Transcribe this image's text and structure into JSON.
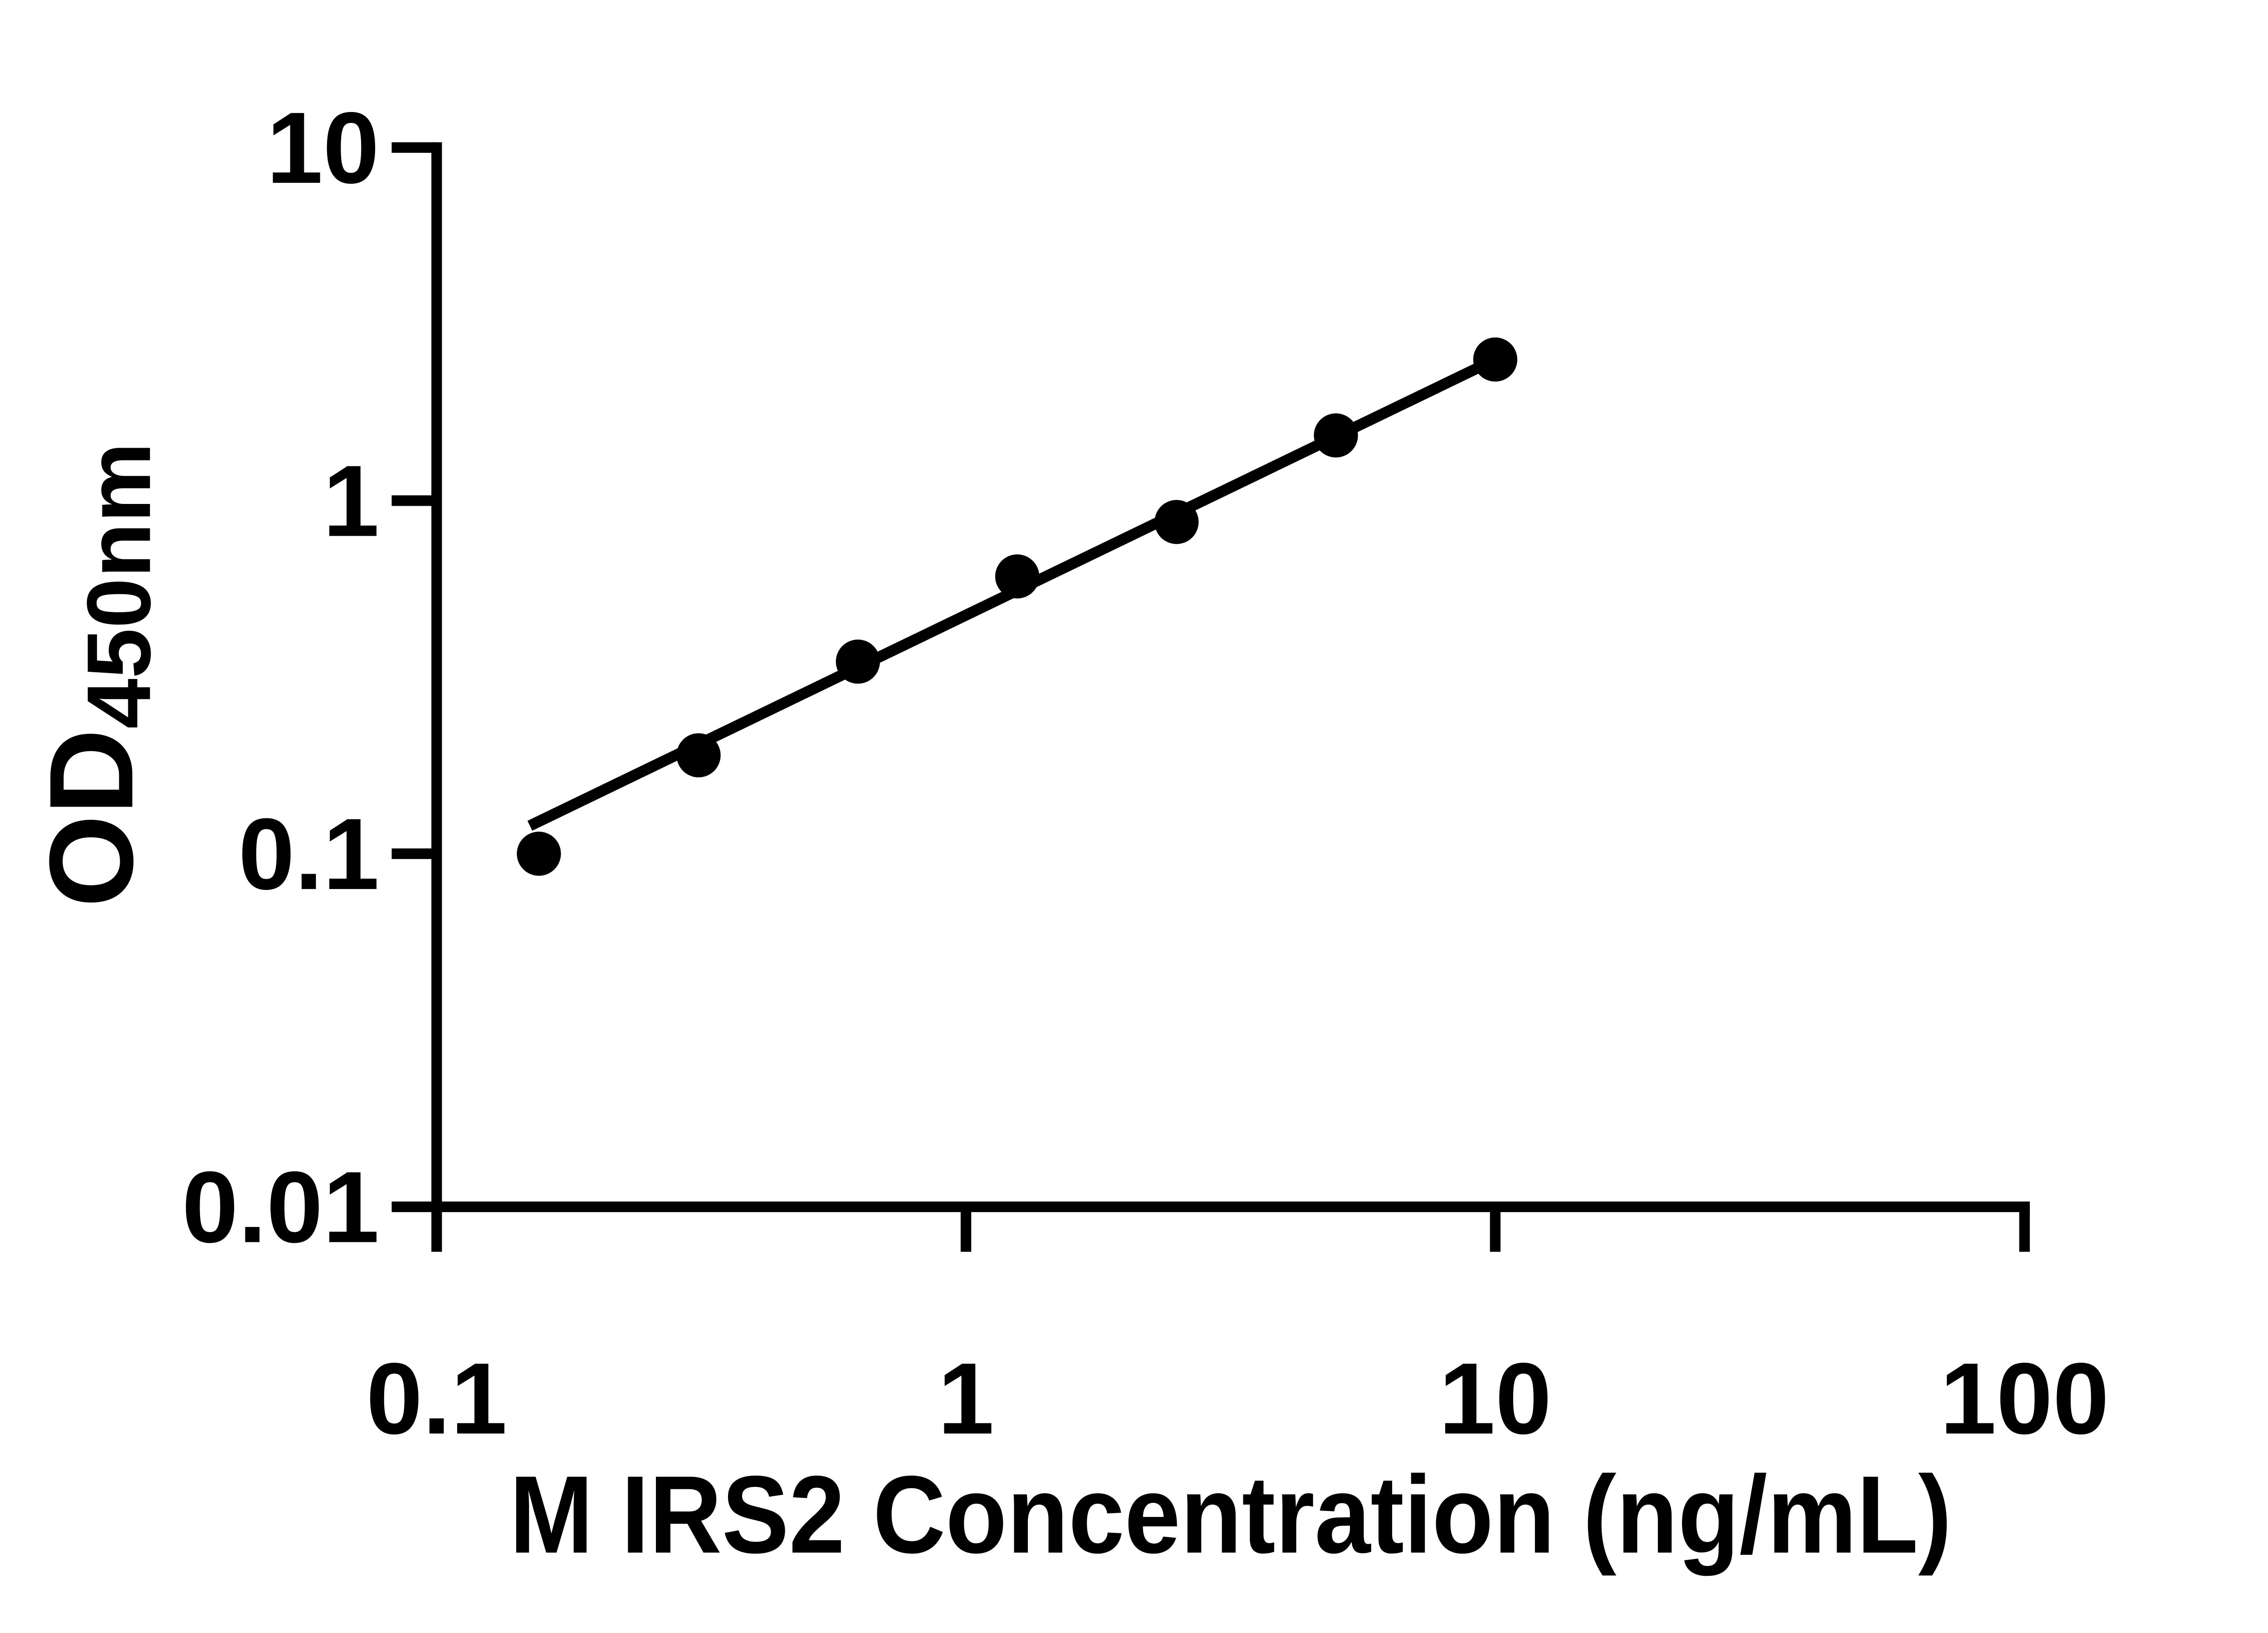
{
  "figure": {
    "background_color": "#ffffff",
    "foreground_color": "#000000"
  },
  "chart_data": {
    "type": "scatter",
    "title": "",
    "xlabel": "M IRS2 Concentration (ng/mL)",
    "ylabel_main": "OD",
    "ylabel_sub": "450nm",
    "x_scale": "log",
    "y_scale": "log",
    "xlim": [
      0.1,
      100
    ],
    "ylim": [
      0.01,
      10
    ],
    "x_tick_values": [
      0.1,
      1,
      10,
      100
    ],
    "x_tick_labels": [
      "0.1",
      "1",
      "10",
      "100"
    ],
    "y_tick_values": [
      10,
      1,
      0.1,
      0.01
    ],
    "y_tick_labels": [
      "10",
      "1",
      "0.1",
      "0.01"
    ],
    "grid": false,
    "legend": false,
    "marker": {
      "shape": "filled-circle",
      "color": "#000000"
    },
    "points": [
      {
        "x": 0.156,
        "y": 0.1
      },
      {
        "x": 0.3125,
        "y": 0.19
      },
      {
        "x": 0.625,
        "y": 0.35
      },
      {
        "x": 1.25,
        "y": 0.61
      },
      {
        "x": 2.5,
        "y": 0.87
      },
      {
        "x": 5,
        "y": 1.53
      },
      {
        "x": 10,
        "y": 2.51
      }
    ],
    "trend_line": {
      "x1": 0.15,
      "y1": 0.12,
      "x2": 10,
      "y2": 2.51
    }
  }
}
